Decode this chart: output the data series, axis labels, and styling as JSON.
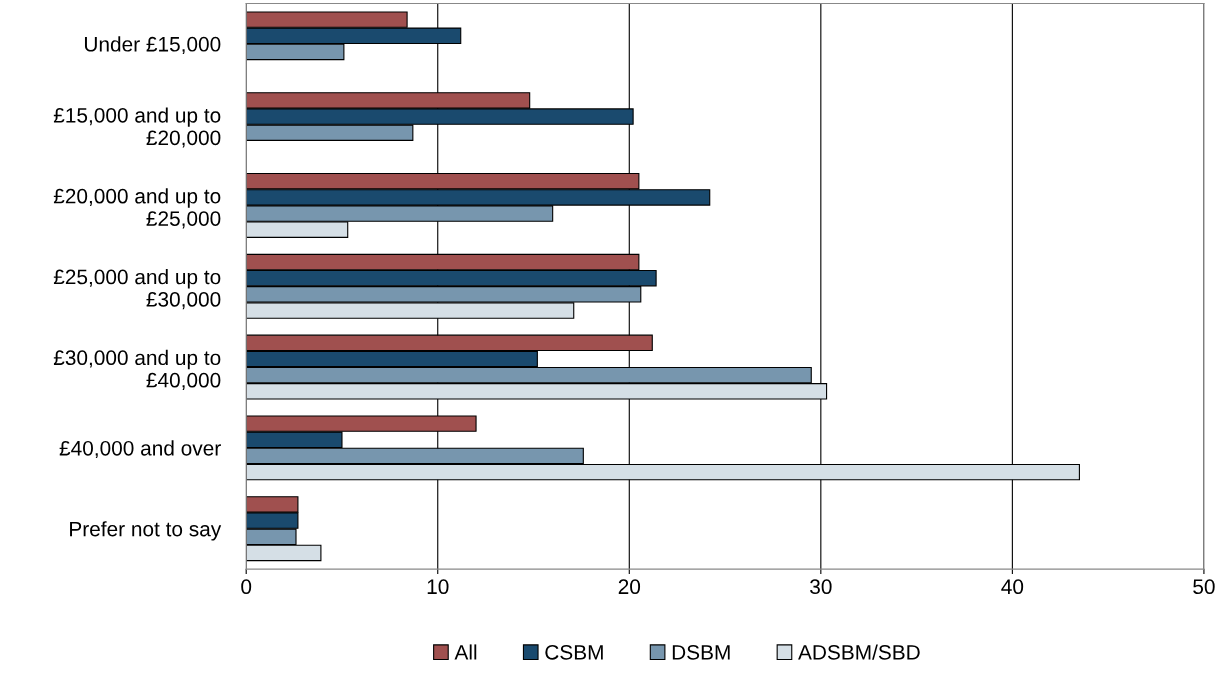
{
  "chart_data": {
    "type": "bar",
    "orientation": "horizontal",
    "categories": [
      "Under £15,000",
      "£15,000 and up to\n£20,000",
      "£20,000 and up to\n£25,000",
      "£25,000 and up to\n£30,000",
      "£30,000 and up to\n£40,000",
      "£40,000 and over",
      "Prefer not to say"
    ],
    "series": [
      {
        "name": "All",
        "color": "#a0504f",
        "values": [
          8.4,
          14.8,
          20.5,
          20.5,
          21.2,
          12.0,
          2.7
        ]
      },
      {
        "name": "CSBM",
        "color": "#1a4a6e",
        "values": [
          11.2,
          20.2,
          24.2,
          21.4,
          15.2,
          5.0,
          2.7
        ]
      },
      {
        "name": "DSBM",
        "color": "#7796ae",
        "values": [
          5.1,
          8.7,
          16.0,
          20.6,
          29.5,
          17.6,
          2.6
        ]
      },
      {
        "name": "ADSBM/SBD",
        "color": "#d5dfe6",
        "values": [
          null,
          null,
          5.3,
          17.1,
          30.3,
          43.5,
          3.9
        ]
      }
    ],
    "xlim": [
      0,
      50
    ],
    "xticks": [
      0,
      10,
      20,
      30,
      40,
      50
    ],
    "grid": "x",
    "legend": "bottom"
  }
}
